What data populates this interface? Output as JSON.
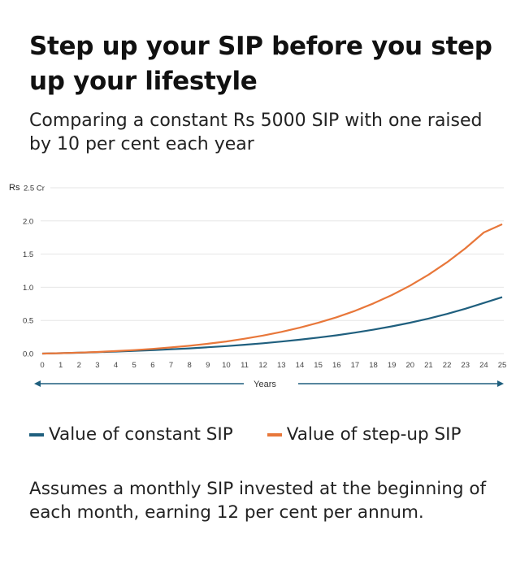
{
  "header": {
    "title": "Step up your SIP before you step up your lifestyle",
    "subtitle": "Comparing a constant Rs 5000 SIP with one raised by 10 per cent each year"
  },
  "legend": {
    "constant_label": "Value of constant SIP",
    "stepup_label": "Value of step-up SIP"
  },
  "colors": {
    "constant": "#1f5f7e",
    "stepup": "#e8773a",
    "axis_arrow": "#1f5f7e",
    "grid": "#e6e6e6"
  },
  "axis": {
    "y_unit_prefix": "Rs",
    "y_top_label": "2.5 Cr",
    "x_label": "Years"
  },
  "footnote": "Assumes a monthly SIP invested at the beginning of each month, earning 12 per cent per annum.",
  "chart_data": {
    "type": "line",
    "title": "Step up your SIP before you step up your lifestyle",
    "subtitle": "Comparing a constant Rs 5000 SIP with one raised by 10 per cent each year",
    "xlabel": "Years",
    "ylabel": "Rs Cr",
    "x": [
      0,
      1,
      2,
      3,
      4,
      5,
      6,
      7,
      8,
      9,
      10,
      11,
      12,
      13,
      14,
      15,
      16,
      17,
      18,
      19,
      20,
      21,
      22,
      23,
      24,
      25
    ],
    "yticks": [
      "0.0",
      "0.5",
      "1.0",
      "1.5",
      "2.0",
      "2.5 Cr"
    ],
    "ylim": [
      0,
      2.5
    ],
    "grid": true,
    "legend_position": "bottom",
    "series": [
      {
        "name": "Value of constant SIP",
        "color": "#1f5f7e",
        "values": [
          0,
          0.006,
          0.014,
          0.022,
          0.031,
          0.041,
          0.052,
          0.065,
          0.079,
          0.095,
          0.113,
          0.133,
          0.156,
          0.181,
          0.209,
          0.241,
          0.276,
          0.316,
          0.36,
          0.41,
          0.466,
          0.528,
          0.598,
          0.676,
          0.764,
          0.85
        ]
      },
      {
        "name": "Value of step-up SIP",
        "color": "#e8773a",
        "values": [
          0,
          0.006,
          0.015,
          0.025,
          0.038,
          0.053,
          0.071,
          0.093,
          0.118,
          0.148,
          0.183,
          0.224,
          0.272,
          0.327,
          0.391,
          0.464,
          0.548,
          0.645,
          0.756,
          0.882,
          1.026,
          1.19,
          1.376,
          1.587,
          1.826,
          1.95
        ]
      }
    ]
  }
}
